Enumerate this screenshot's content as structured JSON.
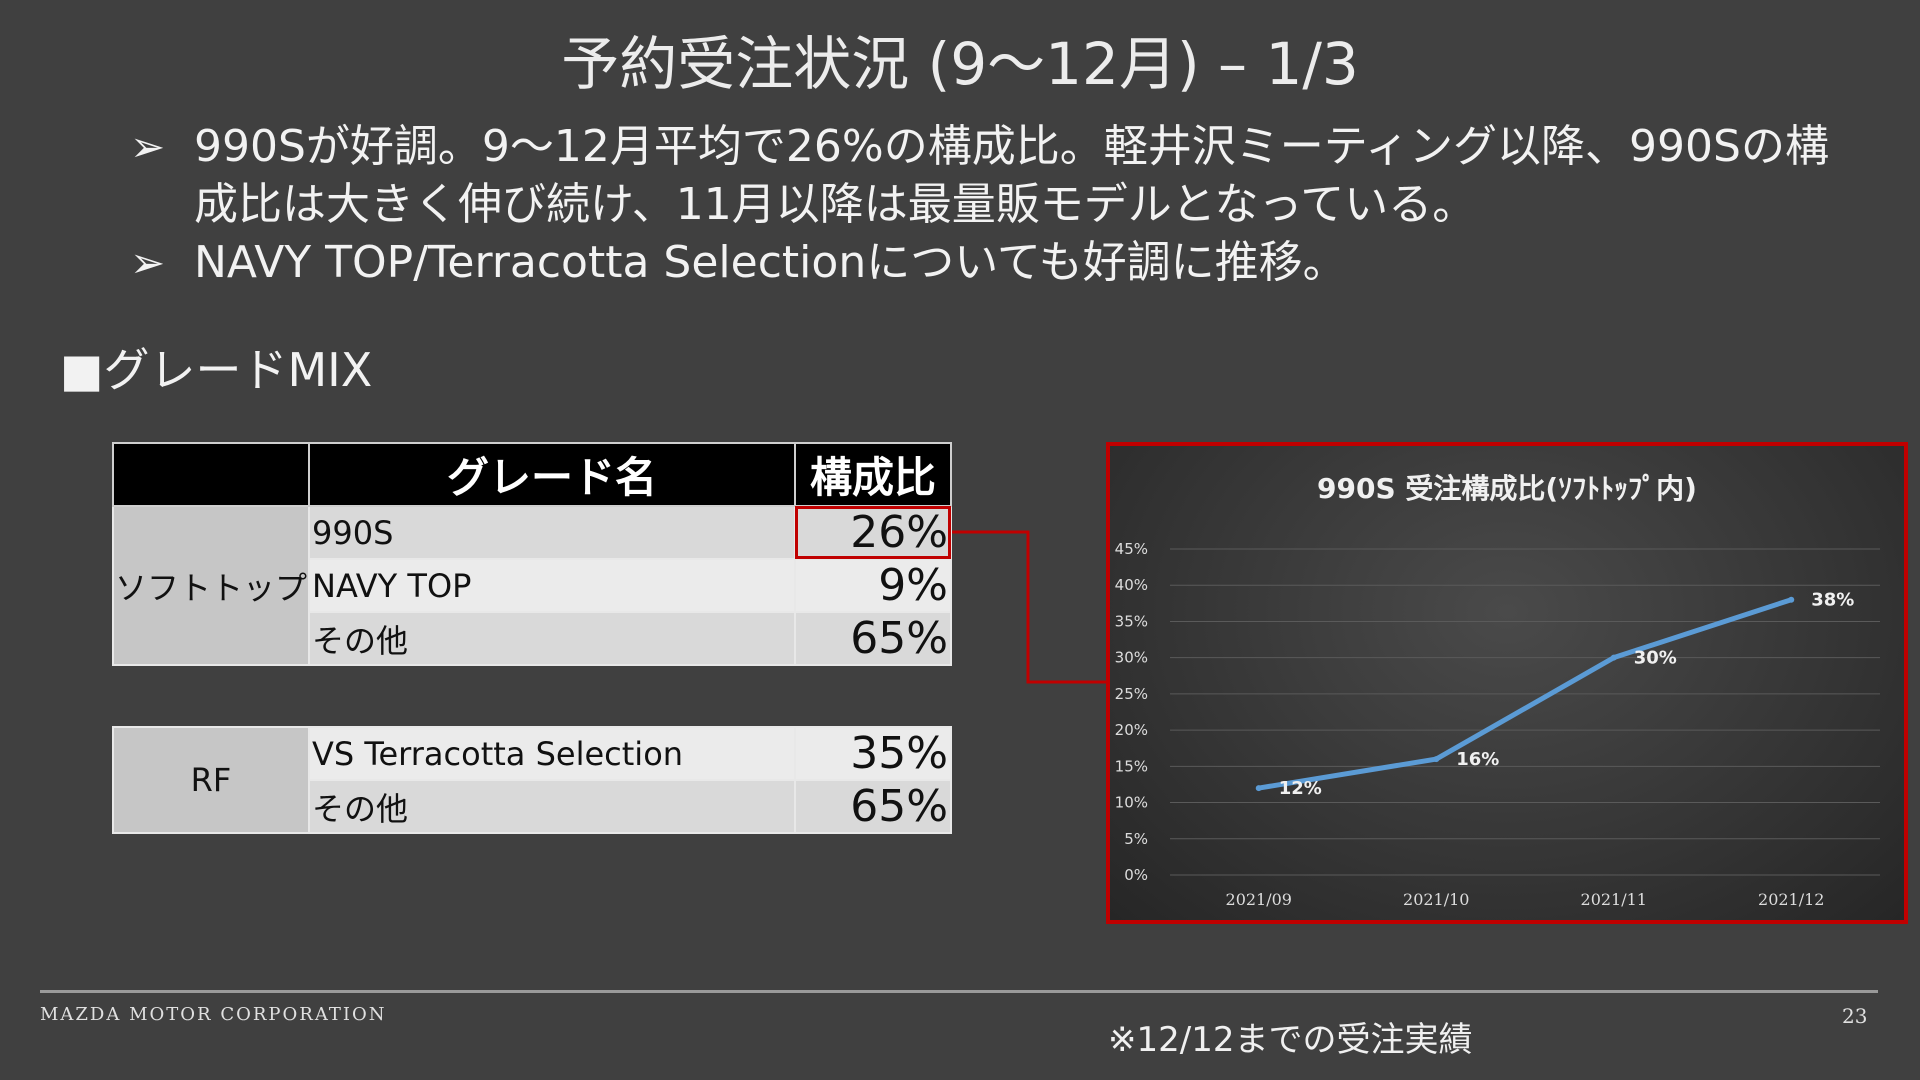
{
  "slide": {
    "title": "予約受注状況 (9～12月) – 1/3",
    "bullets": [
      {
        "marker": "➢",
        "text": "990Sが好調。9～12月平均で26%の構成比。軽井沢ミーティング以降、990Sの構成比は大きく伸び続け、11月以降は最量販モデルとなっている。"
      },
      {
        "marker": "➢",
        "text": "NAVY TOP/Terracotta Selectionについても好調に推移。"
      }
    ],
    "section_heading": "■グレードMIX",
    "footer": {
      "company": "MAZDA MOTOR CORPORATION",
      "note": "※12/12までの受注実績",
      "page_number": "23"
    }
  },
  "grade_table": {
    "headers": [
      "",
      "グレード名",
      "構成比"
    ],
    "group_label": "ソフトトップ",
    "rows": [
      {
        "name": "990S",
        "share": "26%"
      },
      {
        "name": "NAVY TOP",
        "share": "9%"
      },
      {
        "name": "その他",
        "share": "65%"
      }
    ]
  },
  "rf_table": {
    "group_label": "RF",
    "rows": [
      {
        "name": "VS Terracotta Selection",
        "share": "35%"
      },
      {
        "name": "その他",
        "share": "65%"
      }
    ]
  },
  "chart_data": {
    "type": "line",
    "title": "990S 受注構成比(ｿﾌﾄﾄｯﾌﾟ内)",
    "categories": [
      "2021/09",
      "2021/10",
      "2021/11",
      "2021/12"
    ],
    "series": [
      {
        "values": [
          12,
          16,
          30,
          38
        ],
        "labels": [
          "12%",
          "16%",
          "30%",
          "38%"
        ],
        "color": "#5b9bd5"
      }
    ],
    "ylim": [
      0,
      45
    ],
    "yticks": [
      "0%",
      "5%",
      "10%",
      "15%",
      "20%",
      "25%",
      "30%",
      "35%",
      "40%",
      "45%"
    ],
    "grid": true,
    "legend": "none"
  },
  "colors": {
    "background": "#404040",
    "highlight_border": "#c00000",
    "series_line": "#5b9bd5"
  }
}
